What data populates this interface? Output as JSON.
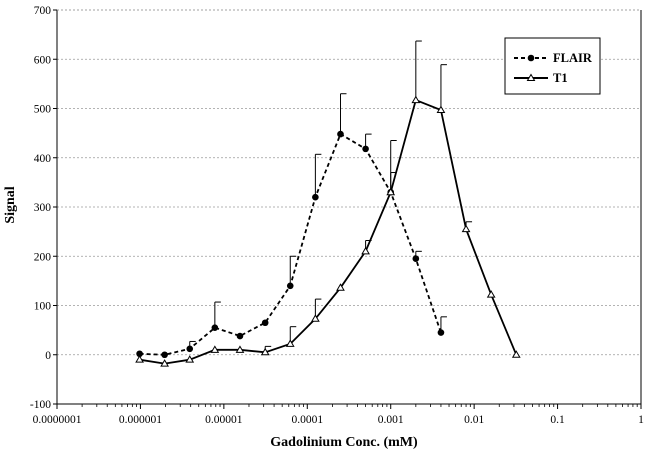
{
  "chart_data": {
    "type": "line",
    "title": "",
    "xlabel": "Gadolinium Conc. (mM)",
    "ylabel": "Signal",
    "x_scale": "log",
    "xlim": [
      1e-07,
      1
    ],
    "ylim": [
      -100,
      700
    ],
    "x_tick_labels": [
      "0.0000001",
      "0.000001",
      "0.00001",
      "0.0001",
      "0.001",
      "0.01",
      "0.1",
      "1"
    ],
    "y_ticks": [
      -100,
      0,
      100,
      200,
      300,
      400,
      500,
      600,
      700
    ],
    "y_tick_labels": [
      "-100",
      "0",
      "100",
      "200",
      "300",
      "400",
      "500",
      "600",
      "700"
    ],
    "grid": "horizontal dashed",
    "legend_position": "top-right",
    "series": [
      {
        "name": "FLAIR",
        "style": "dashed",
        "marker": "circle",
        "x": [
          9.77e-07,
          1.95e-06,
          3.9e-06,
          7.8e-06,
          1.56e-05,
          3.13e-05,
          6.25e-05,
          0.000125,
          0.00025,
          0.0005,
          0.001,
          0.002,
          0.004
        ],
        "y": [
          2,
          0,
          12,
          55,
          38,
          65,
          140,
          320,
          448,
          418,
          330,
          195,
          45
        ],
        "error": [
          0,
          0,
          15,
          52,
          0,
          0,
          60,
          87,
          82,
          30,
          40,
          15,
          32
        ]
      },
      {
        "name": "T1",
        "style": "solid",
        "marker": "triangle",
        "x": [
          9.77e-07,
          1.95e-06,
          3.9e-06,
          7.8e-06,
          1.56e-05,
          3.13e-05,
          6.25e-05,
          0.000125,
          0.00025,
          0.0005,
          0.001,
          0.002,
          0.004,
          0.008,
          0.016,
          0.032
        ],
        "y": [
          -10,
          -18,
          -10,
          10,
          10,
          5,
          22,
          73,
          136,
          210,
          330,
          517,
          497,
          255,
          122,
          0
        ],
        "error": [
          0,
          0,
          0,
          0,
          0,
          12,
          35,
          40,
          0,
          22,
          105,
          120,
          92,
          15,
          0,
          0
        ]
      }
    ]
  }
}
